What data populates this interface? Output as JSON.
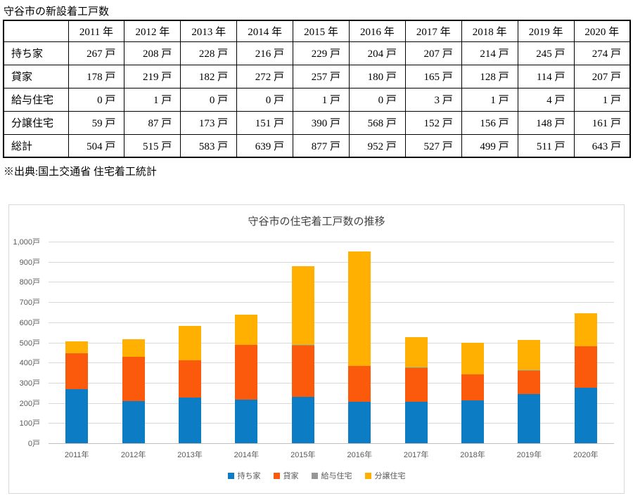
{
  "page": {
    "doc_title": "守谷市の新設着工戸数",
    "source_note": "※出典:国土交通省 住宅着工統計"
  },
  "table": {
    "corner_label": "",
    "col_headers": [
      "2011 年",
      "2012 年",
      "2013 年",
      "2014 年",
      "2015 年",
      "2016 年",
      "2017 年",
      "2018 年",
      "2019 年",
      "2020 年"
    ],
    "unit": "戸",
    "rows": [
      {
        "label": "持ち家",
        "values": [
          267,
          208,
          228,
          216,
          229,
          204,
          207,
          214,
          245,
          274
        ]
      },
      {
        "label": "貸家",
        "values": [
          178,
          219,
          182,
          272,
          257,
          180,
          165,
          128,
          114,
          207
        ]
      },
      {
        "label": "給与住宅",
        "values": [
          0,
          1,
          0,
          0,
          1,
          0,
          3,
          1,
          4,
          1
        ]
      },
      {
        "label": "分譲住宅",
        "values": [
          59,
          87,
          173,
          151,
          390,
          568,
          152,
          156,
          148,
          161
        ]
      },
      {
        "label": "総計",
        "values": [
          504,
          515,
          583,
          639,
          877,
          952,
          527,
          499,
          511,
          643
        ]
      }
    ]
  },
  "chart_data": {
    "type": "bar",
    "stacked": true,
    "title": "守谷市の住宅着工戸数の推移",
    "categories": [
      "2011年",
      "2012年",
      "2013年",
      "2014年",
      "2015年",
      "2016年",
      "2017年",
      "2018年",
      "2019年",
      "2020年"
    ],
    "series": [
      {
        "name": "持ち家",
        "color": "#0C7CC4",
        "values": [
          267,
          208,
          228,
          216,
          229,
          204,
          207,
          214,
          245,
          274
        ]
      },
      {
        "name": "貸家",
        "color": "#FB5A0D",
        "values": [
          178,
          219,
          182,
          272,
          257,
          180,
          165,
          128,
          114,
          207
        ]
      },
      {
        "name": "給与住宅",
        "color": "#969696",
        "values": [
          0,
          1,
          0,
          0,
          1,
          0,
          3,
          1,
          4,
          1
        ]
      },
      {
        "name": "分譲住宅",
        "color": "#FFB000",
        "values": [
          59,
          87,
          173,
          151,
          390,
          568,
          152,
          156,
          148,
          161
        ]
      }
    ],
    "ylim": [
      0,
      1000
    ],
    "ytick_step": 100,
    "ytick_labels_top_down": [
      "1,000戸",
      "900戸",
      "800戸",
      "700戸",
      "600戸",
      "500戸",
      "400戸",
      "300戸",
      "200戸",
      "100戸",
      "0戸"
    ],
    "grid": true,
    "legend_position": "bottom"
  }
}
